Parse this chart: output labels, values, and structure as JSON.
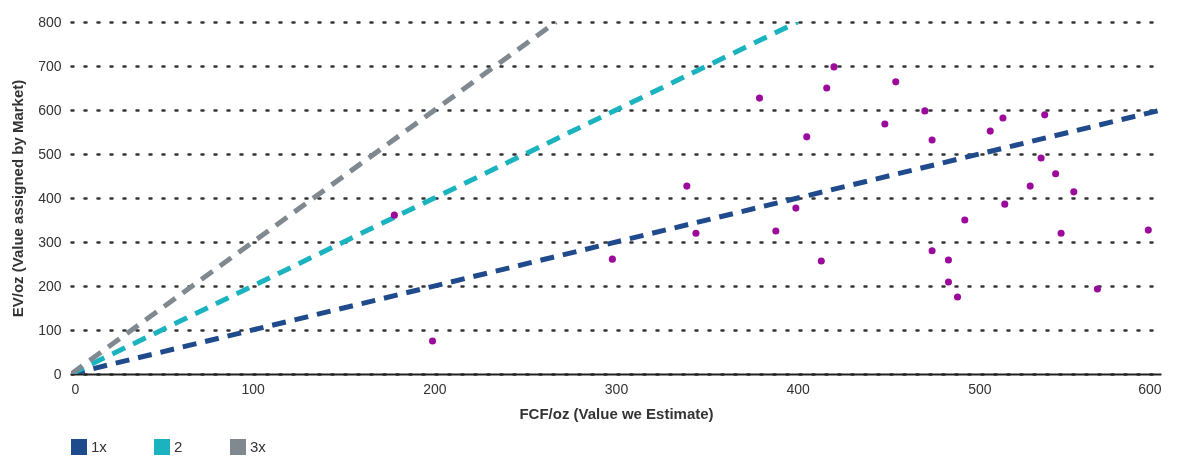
{
  "chart_data": {
    "type": "scatter",
    "xlabel": "FCF/oz (Value we Estimate)",
    "ylabel": "EV/oz (Value assigned by Market)",
    "xlim": [
      0,
      600
    ],
    "ylim": [
      0,
      800
    ],
    "xticks": [
      0,
      100,
      200,
      300,
      400,
      500,
      600
    ],
    "yticks": [
      0,
      100,
      200,
      300,
      400,
      500,
      600,
      700,
      800
    ],
    "grid": "y",
    "legend": "bottom",
    "line_style": "dashed",
    "series": [
      {
        "name": "1x",
        "type": "line",
        "color": "#1f4a8c",
        "x": [
          0,
          600
        ],
        "values": [
          0,
          600
        ]
      },
      {
        "name": "2",
        "type": "line",
        "color": "#1ab3bf",
        "x": [
          0,
          400
        ],
        "values": [
          0,
          800
        ]
      },
      {
        "name": "3x",
        "type": "line",
        "color": "#808890",
        "x": [
          0,
          267
        ],
        "values": [
          0,
          800
        ]
      },
      {
        "color": "#9b0a9b",
        "marker": "circle",
        "x": [
          178,
          199,
          298,
          339,
          344,
          379,
          388,
          399,
          405,
          413,
          416,
          420,
          448,
          454,
          470,
          474,
          474,
          483,
          483,
          488,
          492,
          506,
          513,
          514,
          528,
          534,
          536,
          542,
          545,
          552,
          565,
          593
        ],
        "values": [
          361,
          75,
          261,
          427,
          320,
          627,
          325,
          377,
          539,
          257,
          650,
          698,
          568,
          664,
          598,
          532,
          280,
          259,
          209,
          175,
          350,
          552,
          582,
          386,
          427,
          491,
          589,
          455,
          320,
          414,
          193,
          327
        ]
      }
    ]
  }
}
